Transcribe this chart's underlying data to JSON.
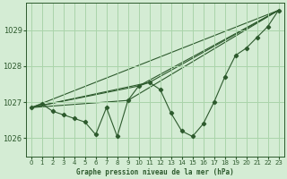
{
  "title": "Graphe pression niveau de la mer (hPa)",
  "bg_color": "#d4ecd4",
  "grid_color": "#aad4aa",
  "line_color": "#2d5a2d",
  "marker_color": "#2d5a2d",
  "xlim": [
    -0.5,
    23.5
  ],
  "ylim": [
    1025.5,
    1029.75
  ],
  "yticks": [
    1026,
    1027,
    1028,
    1029
  ],
  "xticks": [
    0,
    1,
    2,
    3,
    4,
    5,
    6,
    7,
    8,
    9,
    10,
    11,
    12,
    13,
    14,
    15,
    16,
    17,
    18,
    19,
    20,
    21,
    22,
    23
  ],
  "series1": [
    1026.85,
    1026.95,
    1026.75,
    1026.65,
    1026.55,
    1026.45,
    1026.1,
    1026.85,
    1026.05,
    1027.05,
    1027.45,
    1027.55,
    1027.35,
    1026.7,
    1026.2,
    1026.05,
    1026.4,
    1027.0,
    1027.7,
    1028.3,
    1028.5,
    1028.8,
    1029.1,
    1029.55
  ],
  "trend1_x": [
    0,
    23
  ],
  "trend1_y": [
    1026.85,
    1029.55
  ],
  "trend2_x": [
    0,
    9,
    23
  ],
  "trend2_y": [
    1026.85,
    1027.05,
    1029.55
  ],
  "trend3_x": [
    0,
    10,
    23
  ],
  "trend3_y": [
    1026.85,
    1027.45,
    1029.55
  ],
  "trend4_x": [
    0,
    11,
    23
  ],
  "trend4_y": [
    1026.85,
    1027.55,
    1029.55
  ]
}
